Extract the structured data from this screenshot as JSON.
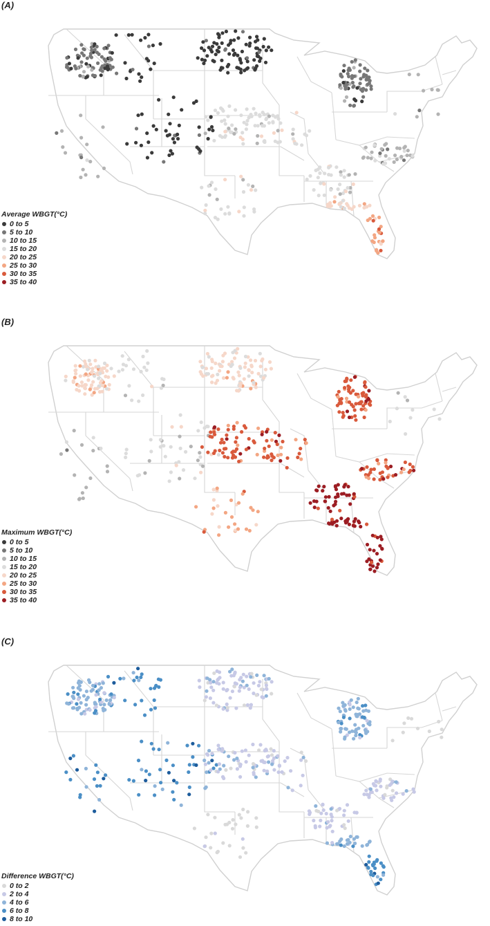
{
  "panels": [
    {
      "label": "(A)",
      "legend_title": "Average WBGT(°C)",
      "legend": [
        {
          "label": "0 to 5",
          "color": "#3a3a3a"
        },
        {
          "label": "5 to 10",
          "color": "#777777"
        },
        {
          "label": "10 to 15",
          "color": "#b3b3b3"
        },
        {
          "label": "15 to 20",
          "color": "#dcdcdc"
        },
        {
          "label": "20 to 25",
          "color": "#f6d7c9"
        },
        {
          "label": "25 to 30",
          "color": "#f3a683"
        },
        {
          "label": "30 to 35",
          "color": "#d95a3c"
        },
        {
          "label": "35 to 40",
          "color": "#9c1d23"
        }
      ],
      "regions": [
        {
          "name": "washington-oregon",
          "cls": 1
        },
        {
          "name": "idaho-montana",
          "cls": 0
        },
        {
          "name": "dakotas-minnesota",
          "cls": 0
        },
        {
          "name": "michigan-wisconsin",
          "cls": 1
        },
        {
          "name": "mountain-west",
          "cls": 0
        },
        {
          "name": "california",
          "cls": 2
        },
        {
          "name": "kansas-nebraska",
          "cls": 3
        },
        {
          "name": "missouri-iowa",
          "cls": 3
        },
        {
          "name": "texas-oklahoma",
          "cls": 3
        },
        {
          "name": "southeast",
          "cls": 3
        },
        {
          "name": "carolinas-virginia",
          "cls": 2
        },
        {
          "name": "gulf-coast",
          "cls": 4
        },
        {
          "name": "florida",
          "cls": 5
        },
        {
          "name": "northeast",
          "cls": 2
        }
      ]
    },
    {
      "label": "(B)",
      "legend_title": "Maximum WBGT(°C)",
      "legend": [
        {
          "label": "0 to 5",
          "color": "#3a3a3a"
        },
        {
          "label": "5 to 10",
          "color": "#777777"
        },
        {
          "label": "10 to 15",
          "color": "#b3b3b3"
        },
        {
          "label": "15 to 20",
          "color": "#dcdcdc"
        },
        {
          "label": "20 to 25",
          "color": "#f6d7c9"
        },
        {
          "label": "25 to 30",
          "color": "#f3a683"
        },
        {
          "label": "30 to 35",
          "color": "#d95a3c"
        },
        {
          "label": "35 to 40",
          "color": "#9c1d23"
        }
      ],
      "regions": [
        {
          "name": "washington-oregon",
          "cls": 4
        },
        {
          "name": "idaho-montana",
          "cls": 3
        },
        {
          "name": "dakotas-minnesota",
          "cls": 4
        },
        {
          "name": "michigan-wisconsin",
          "cls": 6
        },
        {
          "name": "mountain-west",
          "cls": 3
        },
        {
          "name": "california",
          "cls": 2
        },
        {
          "name": "kansas-nebraska",
          "cls": 6
        },
        {
          "name": "missouri-iowa",
          "cls": 6
        },
        {
          "name": "texas-oklahoma",
          "cls": 5
        },
        {
          "name": "southeast",
          "cls": 7
        },
        {
          "name": "carolinas-virginia",
          "cls": 6
        },
        {
          "name": "gulf-coast",
          "cls": 7
        },
        {
          "name": "florida",
          "cls": 7
        },
        {
          "name": "northeast",
          "cls": 3
        }
      ]
    },
    {
      "label": "(C)",
      "legend_title": "Difference WBGT(°C)",
      "legend": [
        {
          "label": "0 to 2",
          "color": "#d9d9d9"
        },
        {
          "label": "2 to 4",
          "color": "#c7c9e6"
        },
        {
          "label": "4 to 6",
          "color": "#8fb4d9"
        },
        {
          "label": "6 to 8",
          "color": "#4b8fc6"
        },
        {
          "label": "8 to 10",
          "color": "#1d5c9c"
        }
      ],
      "regions": [
        {
          "name": "washington-oregon",
          "cls": 2
        },
        {
          "name": "idaho-montana",
          "cls": 3
        },
        {
          "name": "dakotas-minnesota",
          "cls": 1
        },
        {
          "name": "michigan-wisconsin",
          "cls": 2
        },
        {
          "name": "mountain-west",
          "cls": 3
        },
        {
          "name": "california",
          "cls": 3
        },
        {
          "name": "kansas-nebraska",
          "cls": 1
        },
        {
          "name": "missouri-iowa",
          "cls": 1
        },
        {
          "name": "texas-oklahoma",
          "cls": 0
        },
        {
          "name": "southeast",
          "cls": 1
        },
        {
          "name": "carolinas-virginia",
          "cls": 1
        },
        {
          "name": "gulf-coast",
          "cls": 2
        },
        {
          "name": "florida",
          "cls": 3
        },
        {
          "name": "northeast",
          "cls": 0
        }
      ]
    }
  ]
}
